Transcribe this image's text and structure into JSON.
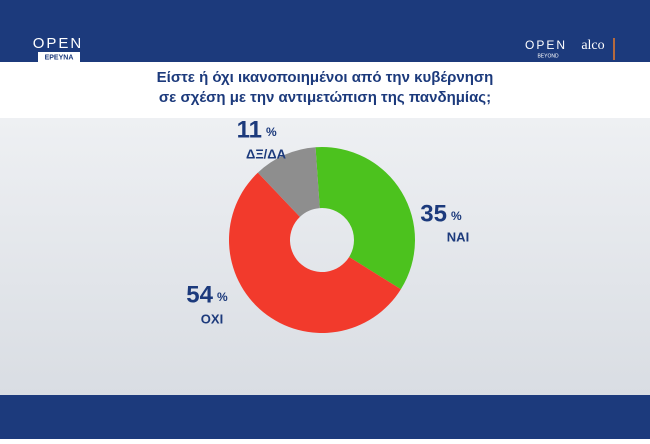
{
  "header": {
    "left_logo": "OPEN",
    "left_logo_sub": "ΕΡΕΥΝΑ",
    "right_logo": "OPEN",
    "right_logo_sub": "BEYOND",
    "partner_logo": "alco"
  },
  "chart_data": {
    "type": "donut",
    "title": "Είστε ή όχι ικανοποιημένοι από την κυβέρνηση",
    "subtitle": "σε σχέση με την αντιμετώπιση της πανδημίας;",
    "categories": [
      "ΝΑΙ",
      "ΟΧΙ",
      "ΔΞ/ΔΑ"
    ],
    "values": [
      35,
      54,
      11
    ],
    "unit": "%",
    "colors": [
      "#4cc21e",
      "#f23a2c",
      "#8e8e8e"
    ]
  }
}
